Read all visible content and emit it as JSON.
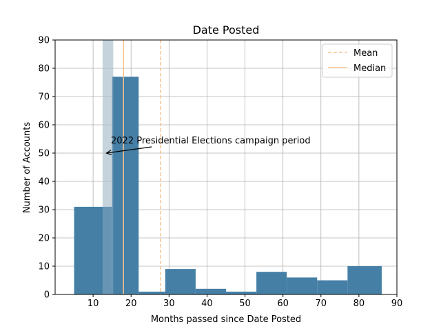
{
  "chart_data": {
    "type": "bar",
    "title": "Date Posted",
    "xlabel": "Months passed since Date Posted",
    "ylabel": "Number of Accounts",
    "xlim": [
      0,
      90
    ],
    "ylim": [
      0,
      90
    ],
    "xticks": [
      10,
      20,
      30,
      40,
      50,
      60,
      70,
      80,
      90
    ],
    "yticks": [
      0,
      10,
      20,
      30,
      40,
      50,
      60,
      70,
      80,
      90
    ],
    "grid": true,
    "bar_color": "#457fa6",
    "bins": [
      {
        "x0": 5,
        "x1": 15,
        "value": 31
      },
      {
        "x0": 15,
        "x1": 22,
        "value": 77
      },
      {
        "x0": 22,
        "x1": 29,
        "value": 1
      },
      {
        "x0": 29,
        "x1": 37,
        "value": 9
      },
      {
        "x0": 37,
        "x1": 45,
        "value": 2
      },
      {
        "x0": 45,
        "x1": 53,
        "value": 1
      },
      {
        "x0": 53,
        "x1": 61,
        "value": 8
      },
      {
        "x0": 61,
        "x1": 69,
        "value": 6
      },
      {
        "x0": 69,
        "x1": 77,
        "value": 5
      },
      {
        "x0": 77,
        "x1": 86,
        "value": 10
      }
    ],
    "campaign_period": {
      "x0": 12.5,
      "x1": 15.3,
      "color": "#a9bfcb"
    },
    "mean": {
      "value": 27.8,
      "color": "#f5c28e"
    },
    "median": {
      "value": 18,
      "color": "#f5c28e"
    },
    "legend": {
      "position": "top-right",
      "entries": [
        "Mean",
        "Median"
      ]
    },
    "annotation": {
      "text": "2022 Presidential Elections campaign period",
      "point": [
        13.5,
        50
      ]
    }
  }
}
